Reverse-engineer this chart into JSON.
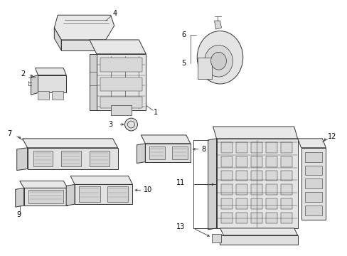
{
  "background_color": "#ffffff",
  "line_color": "#333333",
  "fill_color": "#f0f0f0",
  "fig_width": 4.89,
  "fig_height": 3.6,
  "dpi": 100
}
